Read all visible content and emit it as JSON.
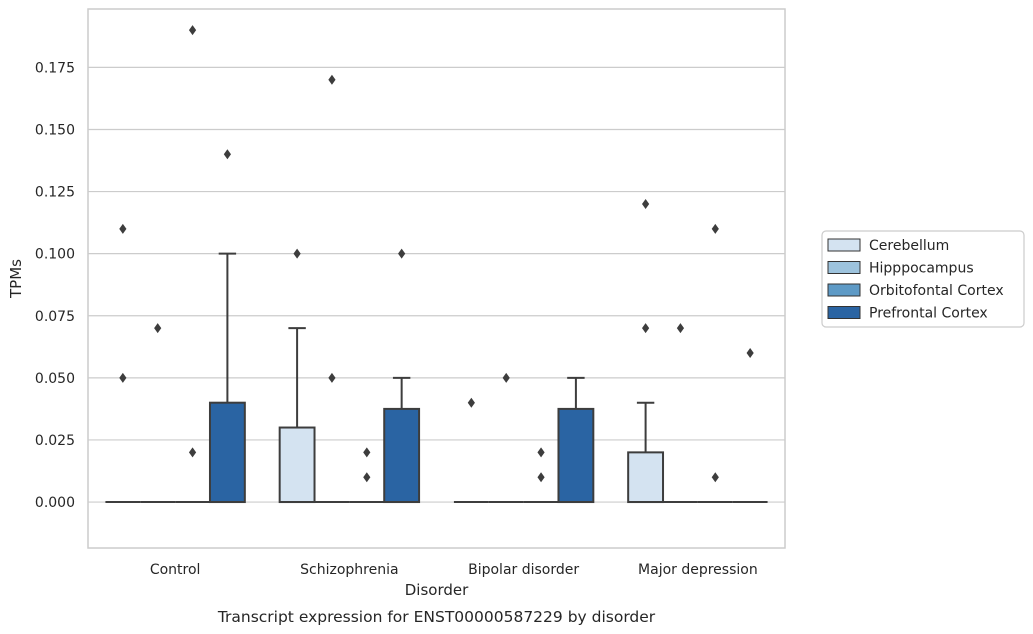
{
  "chart_data": {
    "type": "box",
    "title": "",
    "caption": "Transcript expression for ENST00000587229 by disorder",
    "xlabel": "Disorder",
    "ylabel": "TPMs",
    "ylim": [
      -0.0185,
      0.1985
    ],
    "yticks": [
      "0.000",
      "0.025",
      "0.050",
      "0.075",
      "0.100",
      "0.125",
      "0.150",
      "0.175"
    ],
    "grid": "horizontal",
    "legend_position": "right",
    "categories": [
      "Control",
      "Schizophrenia",
      "Bipolar disorder",
      "Major depression"
    ],
    "series": [
      {
        "name": "Cerebellum",
        "color": "#d4e3f1",
        "boxes": [
          {
            "q1": 0,
            "median": 0,
            "q3": 0,
            "whisker_low": 0,
            "whisker_high": 0,
            "outliers": [
              0.11,
              0.05
            ]
          },
          {
            "q1": 0,
            "median": 0,
            "q3": 0.03,
            "whisker_low": 0,
            "whisker_high": 0.07,
            "outliers": [
              0.1
            ]
          },
          {
            "q1": 0,
            "median": 0,
            "q3": 0,
            "whisker_low": 0,
            "whisker_high": 0,
            "outliers": [
              0.04
            ]
          },
          {
            "q1": 0,
            "median": 0,
            "q3": 0.02,
            "whisker_low": 0,
            "whisker_high": 0.04,
            "outliers": [
              0.07,
              0.12
            ]
          }
        ]
      },
      {
        "name": "Hipppocampus",
        "color": "#9dc3dd",
        "boxes": [
          {
            "q1": 0,
            "median": 0,
            "q3": 0,
            "whisker_low": 0,
            "whisker_high": 0,
            "outliers": [
              0.07
            ]
          },
          {
            "q1": 0,
            "median": 0,
            "q3": 0,
            "whisker_low": 0,
            "whisker_high": 0,
            "outliers": [
              0.17,
              0.05
            ]
          },
          {
            "q1": 0,
            "median": 0,
            "q3": 0,
            "whisker_low": 0,
            "whisker_high": 0,
            "outliers": [
              0.05
            ]
          },
          {
            "q1": 0,
            "median": 0,
            "q3": 0,
            "whisker_low": 0,
            "whisker_high": 0,
            "outliers": [
              0.07
            ]
          }
        ]
      },
      {
        "name": "Orbitofontal Cortex",
        "color": "#5e9ac6",
        "boxes": [
          {
            "q1": 0,
            "median": 0,
            "q3": 0,
            "whisker_low": 0,
            "whisker_high": 0,
            "outliers": [
              0.19,
              0.02
            ]
          },
          {
            "q1": 0,
            "median": 0,
            "q3": 0,
            "whisker_low": 0,
            "whisker_high": 0,
            "outliers": [
              0.02,
              0.01
            ]
          },
          {
            "q1": 0,
            "median": 0,
            "q3": 0,
            "whisker_low": 0,
            "whisker_high": 0,
            "outliers": [
              0.02,
              0.01
            ]
          },
          {
            "q1": 0,
            "median": 0,
            "q3": 0,
            "whisker_low": 0,
            "whisker_high": 0,
            "outliers": [
              0.11,
              0.01
            ]
          }
        ]
      },
      {
        "name": "Prefrontal Cortex",
        "color": "#2a64a3",
        "boxes": [
          {
            "q1": 0,
            "median": 0,
            "q3": 0.04,
            "whisker_low": 0,
            "whisker_high": 0.1,
            "outliers": [
              0.14
            ]
          },
          {
            "q1": 0,
            "median": 0,
            "q3": 0.0375,
            "whisker_low": 0,
            "whisker_high": 0.05,
            "outliers": [
              0.1
            ]
          },
          {
            "q1": 0,
            "median": 0,
            "q3": 0.0375,
            "whisker_low": 0,
            "whisker_high": 0.05,
            "outliers": []
          },
          {
            "q1": 0,
            "median": 0,
            "q3": 0,
            "whisker_low": 0,
            "whisker_high": 0,
            "outliers": [
              0.06
            ]
          }
        ]
      }
    ]
  }
}
